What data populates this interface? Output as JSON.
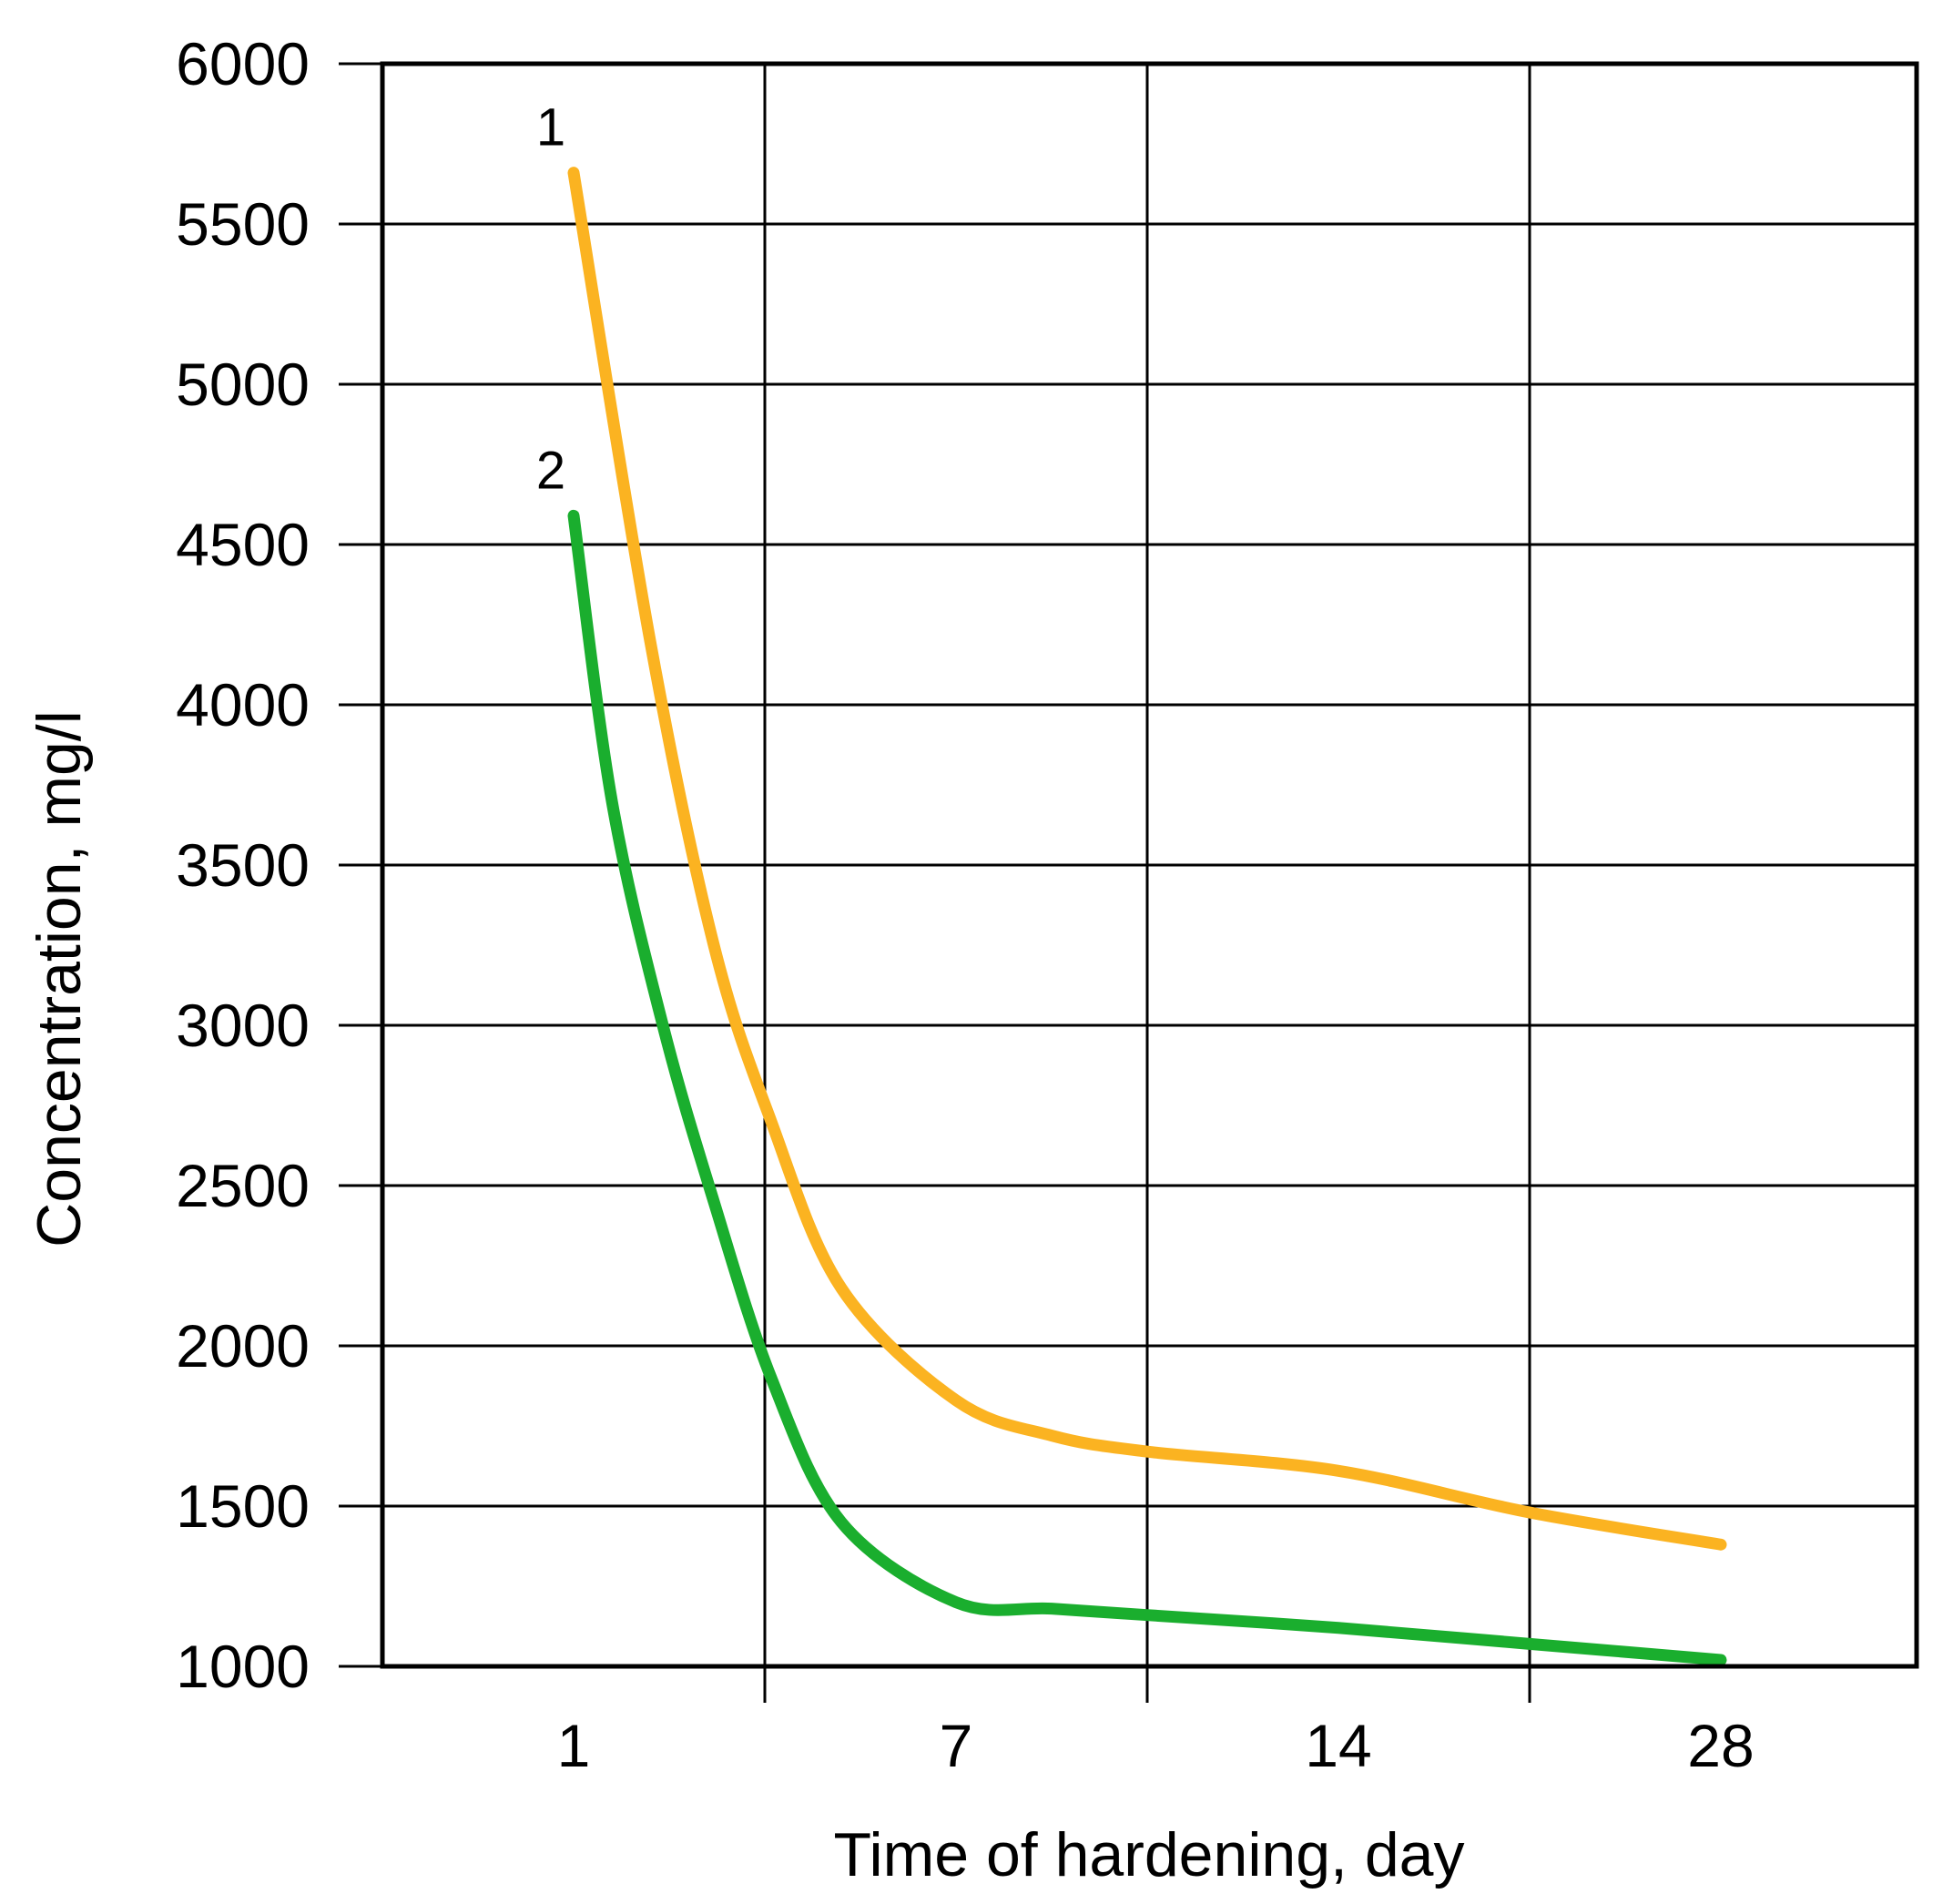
{
  "chart_data": {
    "type": "line",
    "title": "",
    "xlabel": "Time of hardening, day",
    "ylabel": "Concentration, mg/l",
    "categories": [
      "1",
      "7",
      "14",
      "28"
    ],
    "ylim": [
      1000,
      6000
    ],
    "yticks": [
      1000,
      1500,
      2000,
      2500,
      3000,
      3500,
      4000,
      4500,
      5000,
      5500,
      6000
    ],
    "grid": true,
    "legend": "none",
    "series": [
      {
        "name": "1",
        "color": "#FBB321",
        "points": [
          [
            1,
            5660
          ],
          [
            2.2,
            4200
          ],
          [
            3.2,
            3250
          ],
          [
            4.1,
            2700
          ],
          [
            5.2,
            2180
          ],
          [
            7,
            1830
          ],
          [
            9,
            1720
          ],
          [
            11,
            1670
          ],
          [
            14,
            1610
          ],
          [
            20,
            1480
          ],
          [
            28,
            1380
          ]
        ]
      },
      {
        "name": "2",
        "color": "#1AAE2E",
        "points": [
          [
            1,
            4590
          ],
          [
            1.6,
            3700
          ],
          [
            2.4,
            3000
          ],
          [
            3.2,
            2450
          ],
          [
            4.1,
            1900
          ],
          [
            5.2,
            1450
          ],
          [
            7,
            1200
          ],
          [
            9,
            1180
          ],
          [
            11,
            1160
          ],
          [
            14,
            1120
          ],
          [
            20,
            1070
          ],
          [
            28,
            1020
          ]
        ]
      }
    ]
  }
}
